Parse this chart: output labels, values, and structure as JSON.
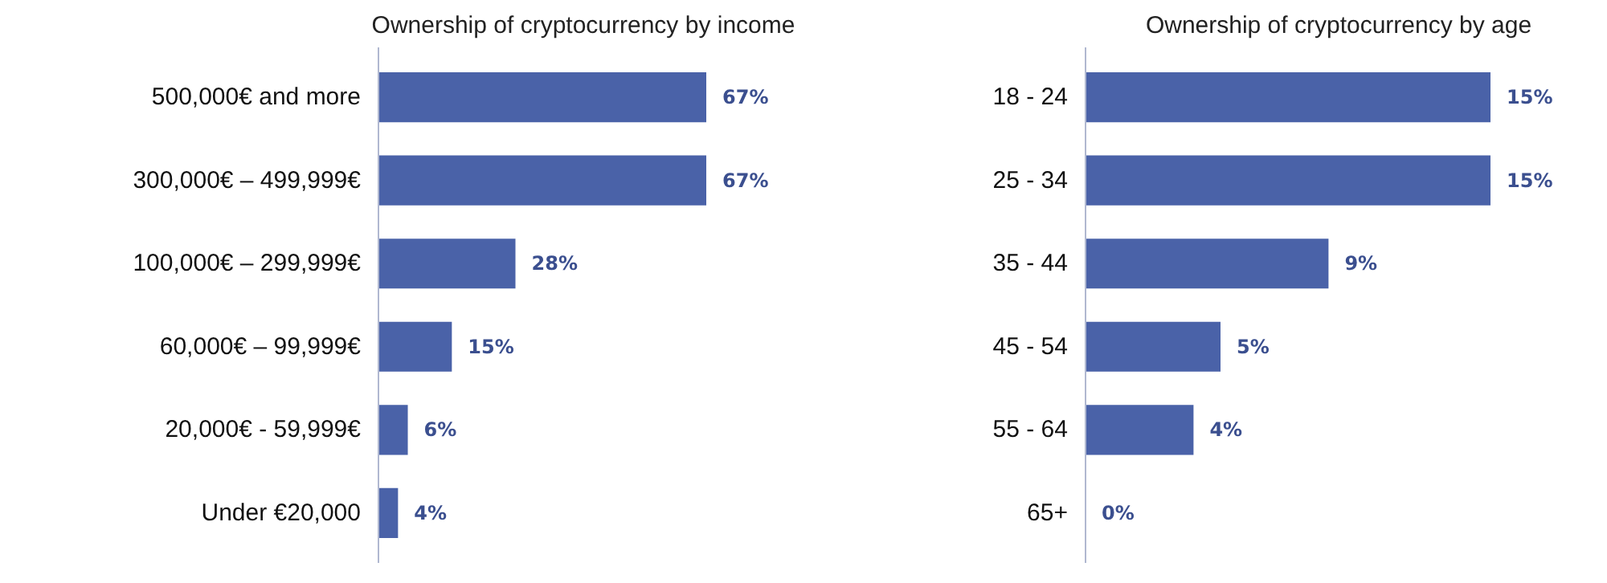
{
  "chart_data": [
    {
      "type": "bar",
      "orientation": "horizontal",
      "title": "Ownership of cryptocurrency by income",
      "categories": [
        "500,000€ and more",
        "300,000€ – 499,999€",
        "100,000€ – 299,999€",
        "60,000€ – 99,999€",
        "20,000€ - 59,999€",
        "Under €20,000"
      ],
      "values": [
        67,
        67,
        28,
        15,
        6,
        4
      ],
      "value_labels": [
        "67%",
        "67%",
        "28%",
        "15%",
        "6%",
        "4%"
      ],
      "color": "#4a62a8",
      "grid": false
    },
    {
      "type": "bar",
      "orientation": "horizontal",
      "title": "Ownership of cryptocurrency by age",
      "categories": [
        "18 - 24",
        "25 - 34",
        "35 - 44",
        "45 - 54",
        "55 - 64",
        "65+"
      ],
      "values": [
        15,
        15,
        9,
        5,
        4,
        0
      ],
      "value_labels": [
        "15%",
        "15%",
        "9%",
        "5%",
        "4%",
        "0%"
      ],
      "color": "#4a62a8",
      "grid": false
    }
  ]
}
